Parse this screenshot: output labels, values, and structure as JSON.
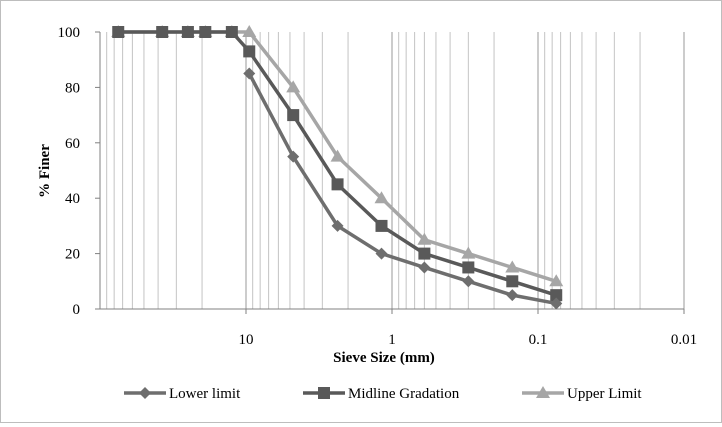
{
  "chart_data": {
    "type": "line",
    "title": "",
    "xlabel": "Sieve Size (mm)",
    "ylabel": "% Finer",
    "x_scale": "log",
    "x_reversed": true,
    "xlim": [
      100,
      0.01
    ],
    "ylim": [
      0,
      100
    ],
    "x_tick_labels": [
      {
        "value": 10,
        "label": "10"
      },
      {
        "value": 1,
        "label": "1"
      },
      {
        "value": 0.1,
        "label": "0.1"
      },
      {
        "value": 0.01,
        "label": "0.01"
      }
    ],
    "y_tick_labels": [
      "0",
      "20",
      "40",
      "60",
      "80",
      "100"
    ],
    "y_ticks": [
      0,
      20,
      40,
      60,
      80,
      100
    ],
    "grid": {
      "vertical_minor": true,
      "horizontal": false
    },
    "legend_position": "bottom",
    "series": [
      {
        "name": "Lower limit",
        "marker": "diamond",
        "color": "#6e6e6e",
        "x": [
          9.5,
          4.75,
          2.36,
          1.18,
          0.6,
          0.3,
          0.15,
          0.075
        ],
        "y": [
          85,
          55,
          30,
          20,
          15,
          10,
          5,
          2
        ]
      },
      {
        "name": "Midline Gradation",
        "marker": "square",
        "color": "#595959",
        "x": [
          75,
          37.5,
          25,
          19,
          12.5,
          9.5,
          4.75,
          2.36,
          1.18,
          0.6,
          0.3,
          0.15,
          0.075
        ],
        "y": [
          100,
          100,
          100,
          100,
          100,
          93,
          70,
          45,
          30,
          20,
          15,
          10,
          5
        ]
      },
      {
        "name": "Upper Limit",
        "marker": "triangle",
        "color": "#a6a6a6",
        "x": [
          75,
          37.5,
          25,
          19,
          12.5,
          9.5,
          4.75,
          2.36,
          1.18,
          0.6,
          0.3,
          0.15,
          0.075
        ],
        "y": [
          100,
          100,
          100,
          100,
          100,
          100,
          80,
          55,
          40,
          25,
          20,
          15,
          10
        ]
      }
    ]
  }
}
